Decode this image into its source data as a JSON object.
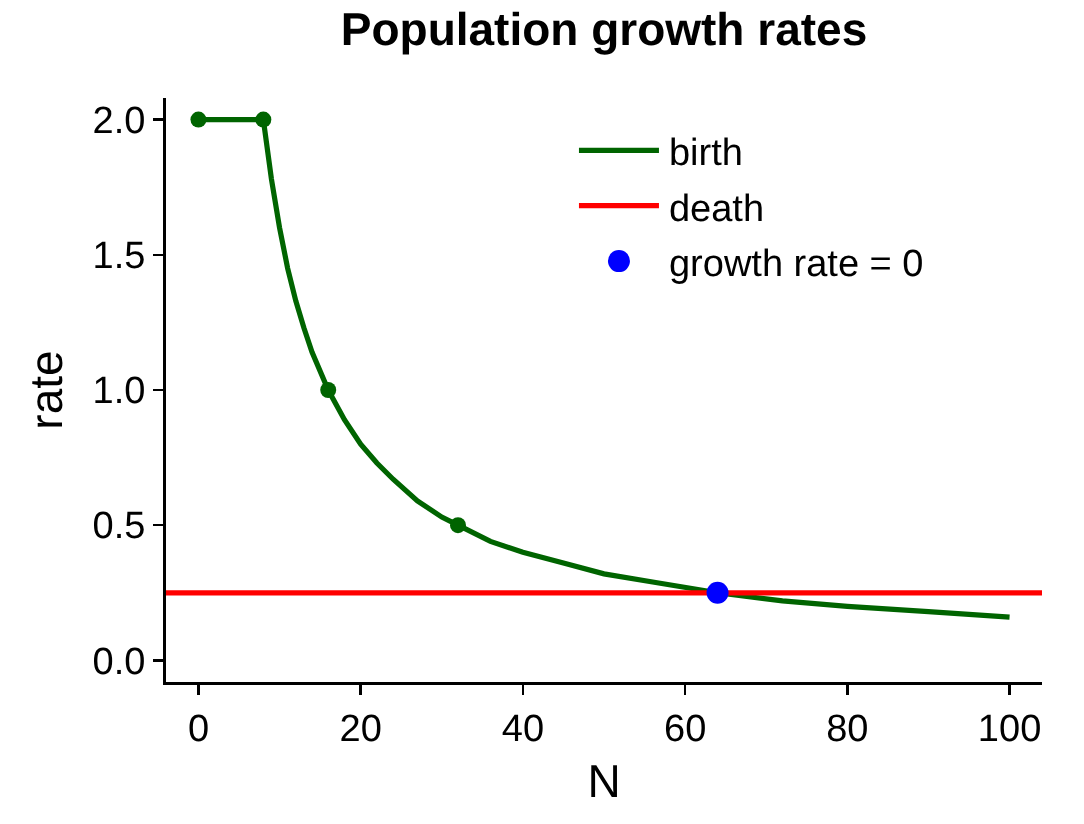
{
  "chart_data": {
    "type": "line",
    "title": "Population growth rates",
    "xlabel": "N",
    "ylabel": "rate",
    "xlim": [
      -4,
      104
    ],
    "xticks": [
      0,
      20,
      40,
      60,
      80,
      100
    ],
    "ylim": [
      -0.08,
      2.08
    ],
    "yticks": [
      {
        "value": 0,
        "label": "0.0"
      },
      {
        "value": 0.5,
        "label": "0.5"
      },
      {
        "value": 1,
        "label": "1.0"
      },
      {
        "value": 1.5,
        "label": "1.5"
      },
      {
        "value": 2,
        "label": "2.0"
      }
    ],
    "legend": "top right",
    "series": [
      {
        "name": "birth",
        "color": "#006400",
        "marker": "none",
        "x": [
          0,
          8,
          9,
          10,
          11,
          12,
          13,
          14,
          16,
          18,
          20,
          22,
          24,
          27,
          30,
          32,
          36,
          40,
          45,
          50,
          56,
          64,
          72,
          80,
          90,
          100
        ],
        "values": [
          2,
          2,
          1.78,
          1.6,
          1.45,
          1.33,
          1.23,
          1.14,
          1.0,
          0.89,
          0.8,
          0.73,
          0.67,
          0.59,
          0.53,
          0.5,
          0.44,
          0.4,
          0.36,
          0.32,
          0.29,
          0.25,
          0.22,
          0.2,
          0.18,
          0.16
        ]
      },
      {
        "name": "death",
        "color": "#ff0000",
        "marker": "none",
        "x": [
          -4,
          104
        ],
        "values": [
          0.25,
          0.25
        ]
      },
      {
        "type": "scatter",
        "color": "#006400",
        "marker": "circle",
        "x": [
          0,
          8,
          16,
          32
        ],
        "values": [
          2,
          2,
          1,
          0.5
        ]
      },
      {
        "name": "growth rate = 0",
        "type": "scatter",
        "color": "#0000ff",
        "marker": "circle",
        "x": [
          64
        ],
        "values": [
          0.25
        ]
      }
    ]
  }
}
